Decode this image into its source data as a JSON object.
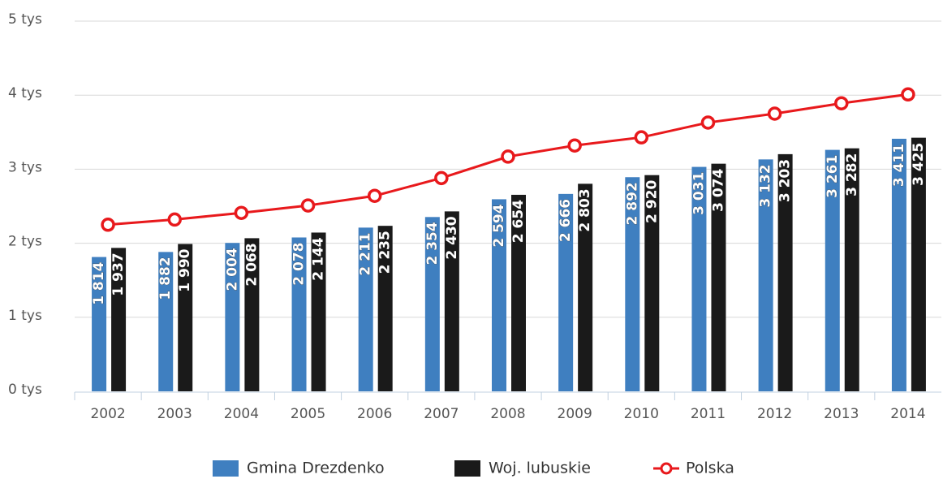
{
  "chart_data": {
    "type": "bar",
    "categories": [
      "2002",
      "2003",
      "2004",
      "2005",
      "2006",
      "2007",
      "2008",
      "2009",
      "2010",
      "2011",
      "2012",
      "2013",
      "2014"
    ],
    "series": [
      {
        "name": "Gmina Drezdenko",
        "color": "#3f7fc0",
        "type": "bar",
        "values": [
          1814,
          1882,
          2004,
          2078,
          2211,
          2354,
          2594,
          2666,
          2892,
          3031,
          3132,
          3261,
          3411
        ],
        "value_labels": [
          "1 814",
          "1 882",
          "2 004",
          "2 078",
          "2 211",
          "2 354",
          "2 594",
          "2 666",
          "2 892",
          "3 031",
          "3 132",
          "3 261",
          "3 411"
        ]
      },
      {
        "name": "Woj. lubuskie",
        "color": "#1a1a1a",
        "type": "bar",
        "values": [
          1937,
          1990,
          2068,
          2144,
          2235,
          2430,
          2654,
          2803,
          2920,
          3074,
          3203,
          3282,
          3425
        ],
        "value_labels": [
          "1 937",
          "1 990",
          "2 068",
          "2 144",
          "2 235",
          "2 430",
          "2 654",
          "2 803",
          "2 920",
          "3 074",
          "3 203",
          "3 282",
          "3 425"
        ]
      },
      {
        "name": "Polska",
        "color": "#e8191c",
        "type": "line",
        "values": [
          2250,
          2320,
          2410,
          2510,
          2640,
          2880,
          3170,
          3320,
          3430,
          3630,
          3750,
          3890,
          4010
        ]
      }
    ],
    "ylim": [
      0,
      5000
    ],
    "yticks": [
      {
        "value": 0,
        "label": "0 tys"
      },
      {
        "value": 1000,
        "label": "1 tys"
      },
      {
        "value": 2000,
        "label": "2 tys"
      },
      {
        "value": 3000,
        "label": "3 tys"
      },
      {
        "value": 4000,
        "label": "4 tys"
      },
      {
        "value": 5000,
        "label": "5 tys"
      }
    ],
    "grid": true
  }
}
